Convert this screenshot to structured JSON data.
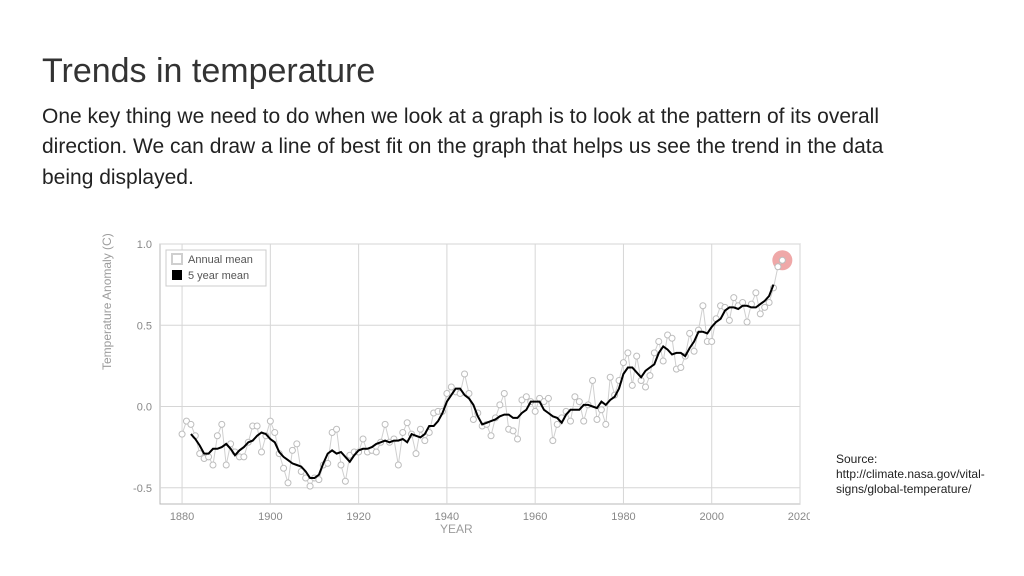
{
  "title": "Trends in temperature",
  "body": "One key thing we need to do when we look at a graph is to look at the pattern of its overall direction. We can draw a line of best fit on the graph that helps us see the trend in the data being displayed.",
  "source_label": "Source:",
  "source_url": "http://climate.nasa.gov/vital-signs/global-temperature/",
  "chart": {
    "type": "line",
    "background_color": "#ffffff",
    "plot_border_color": "#b8b8b8",
    "grid_color": "#d6d6d6",
    "grid_width": 1,
    "x_label": "YEAR",
    "y_label": "Temperature Anomaly (C)",
    "axis_label_color": "#9c9c9c",
    "axis_label_fontsize": 12,
    "tick_color": "#888888",
    "tick_fontsize": 11,
    "xlim": [
      1875,
      2020
    ],
    "ylim": [
      -0.6,
      1.0
    ],
    "xticks": [
      1880,
      1900,
      1920,
      1940,
      1960,
      1980,
      2000,
      2020
    ],
    "yticks": [
      -0.5,
      0.0,
      0.5,
      1.0
    ],
    "legend": {
      "position": "top-left",
      "bg": "#ffffff",
      "border": "#cccccc",
      "fontsize": 11,
      "items": [
        {
          "label": "Annual mean",
          "swatch": "#cfcfcf",
          "swatch_type": "square-outline"
        },
        {
          "label": "5 year mean",
          "swatch": "#000000",
          "swatch_type": "square-fill"
        }
      ]
    },
    "highlight_marker": {
      "year": 2016,
      "value": 0.9,
      "radius": 10,
      "fill": "#ea8b8b",
      "opacity": 0.75
    },
    "series_annual": {
      "color_line": "#cfcfcf",
      "marker_fill": "#ffffff",
      "marker_stroke": "#bdbdbd",
      "marker_radius": 3,
      "line_width": 1,
      "data": [
        [
          1880,
          -0.17
        ],
        [
          1881,
          -0.09
        ],
        [
          1882,
          -0.11
        ],
        [
          1883,
          -0.18
        ],
        [
          1884,
          -0.29
        ],
        [
          1885,
          -0.32
        ],
        [
          1886,
          -0.31
        ],
        [
          1887,
          -0.36
        ],
        [
          1888,
          -0.18
        ],
        [
          1889,
          -0.11
        ],
        [
          1890,
          -0.36
        ],
        [
          1891,
          -0.23
        ],
        [
          1892,
          -0.28
        ],
        [
          1893,
          -0.31
        ],
        [
          1894,
          -0.31
        ],
        [
          1895,
          -0.22
        ],
        [
          1896,
          -0.12
        ],
        [
          1897,
          -0.12
        ],
        [
          1898,
          -0.28
        ],
        [
          1899,
          -0.18
        ],
        [
          1900,
          -0.09
        ],
        [
          1901,
          -0.16
        ],
        [
          1902,
          -0.29
        ],
        [
          1903,
          -0.38
        ],
        [
          1904,
          -0.47
        ],
        [
          1905,
          -0.27
        ],
        [
          1906,
          -0.23
        ],
        [
          1907,
          -0.4
        ],
        [
          1908,
          -0.44
        ],
        [
          1909,
          -0.49
        ],
        [
          1910,
          -0.44
        ],
        [
          1911,
          -0.45
        ],
        [
          1912,
          -0.36
        ],
        [
          1913,
          -0.35
        ],
        [
          1914,
          -0.16
        ],
        [
          1915,
          -0.14
        ],
        [
          1916,
          -0.36
        ],
        [
          1917,
          -0.46
        ],
        [
          1918,
          -0.3
        ],
        [
          1919,
          -0.28
        ],
        [
          1920,
          -0.28
        ],
        [
          1921,
          -0.2
        ],
        [
          1922,
          -0.28
        ],
        [
          1923,
          -0.27
        ],
        [
          1924,
          -0.28
        ],
        [
          1925,
          -0.22
        ],
        [
          1926,
          -0.11
        ],
        [
          1927,
          -0.22
        ],
        [
          1928,
          -0.2
        ],
        [
          1929,
          -0.36
        ],
        [
          1930,
          -0.16
        ],
        [
          1931,
          -0.1
        ],
        [
          1932,
          -0.17
        ],
        [
          1933,
          -0.29
        ],
        [
          1934,
          -0.14
        ],
        [
          1935,
          -0.21
        ],
        [
          1936,
          -0.16
        ],
        [
          1937,
          -0.04
        ],
        [
          1938,
          -0.03
        ],
        [
          1939,
          -0.03
        ],
        [
          1940,
          0.08
        ],
        [
          1941,
          0.12
        ],
        [
          1942,
          0.09
        ],
        [
          1943,
          0.08
        ],
        [
          1944,
          0.2
        ],
        [
          1945,
          0.08
        ],
        [
          1946,
          -0.08
        ],
        [
          1947,
          -0.04
        ],
        [
          1948,
          -0.12
        ],
        [
          1949,
          -0.11
        ],
        [
          1950,
          -0.18
        ],
        [
          1951,
          -0.07
        ],
        [
          1952,
          0.01
        ],
        [
          1953,
          0.08
        ],
        [
          1954,
          -0.14
        ],
        [
          1955,
          -0.15
        ],
        [
          1956,
          -0.2
        ],
        [
          1957,
          0.04
        ],
        [
          1958,
          0.06
        ],
        [
          1959,
          0.03
        ],
        [
          1960,
          -0.03
        ],
        [
          1961,
          0.05
        ],
        [
          1962,
          0.03
        ],
        [
          1963,
          0.05
        ],
        [
          1964,
          -0.21
        ],
        [
          1965,
          -0.11
        ],
        [
          1966,
          -0.07
        ],
        [
          1967,
          -0.03
        ],
        [
          1968,
          -0.09
        ],
        [
          1969,
          0.06
        ],
        [
          1970,
          0.03
        ],
        [
          1971,
          -0.09
        ],
        [
          1972,
          0.01
        ],
        [
          1973,
          0.16
        ],
        [
          1974,
          -0.08
        ],
        [
          1975,
          -0.02
        ],
        [
          1976,
          -0.11
        ],
        [
          1977,
          0.18
        ],
        [
          1978,
          0.07
        ],
        [
          1979,
          0.16
        ],
        [
          1980,
          0.27
        ],
        [
          1981,
          0.33
        ],
        [
          1982,
          0.13
        ],
        [
          1983,
          0.31
        ],
        [
          1984,
          0.16
        ],
        [
          1985,
          0.12
        ],
        [
          1986,
          0.19
        ],
        [
          1987,
          0.33
        ],
        [
          1988,
          0.4
        ],
        [
          1989,
          0.28
        ],
        [
          1990,
          0.44
        ],
        [
          1991,
          0.42
        ],
        [
          1992,
          0.23
        ],
        [
          1993,
          0.24
        ],
        [
          1994,
          0.31
        ],
        [
          1995,
          0.45
        ],
        [
          1996,
          0.34
        ],
        [
          1997,
          0.47
        ],
        [
          1998,
          0.62
        ],
        [
          1999,
          0.4
        ],
        [
          2000,
          0.4
        ],
        [
          2001,
          0.54
        ],
        [
          2002,
          0.62
        ],
        [
          2003,
          0.61
        ],
        [
          2004,
          0.53
        ],
        [
          2005,
          0.67
        ],
        [
          2006,
          0.62
        ],
        [
          2007,
          0.64
        ],
        [
          2008,
          0.52
        ],
        [
          2009,
          0.63
        ],
        [
          2010,
          0.7
        ],
        [
          2011,
          0.57
        ],
        [
          2012,
          0.61
        ],
        [
          2013,
          0.64
        ],
        [
          2014,
          0.73
        ],
        [
          2015,
          0.86
        ],
        [
          2016,
          0.9
        ]
      ]
    },
    "series_5yr": {
      "color_line": "#000000",
      "line_width": 2,
      "data": [
        [
          1882,
          -0.17
        ],
        [
          1883,
          -0.2
        ],
        [
          1884,
          -0.24
        ],
        [
          1885,
          -0.29
        ],
        [
          1886,
          -0.29
        ],
        [
          1887,
          -0.26
        ],
        [
          1888,
          -0.26
        ],
        [
          1889,
          -0.25
        ],
        [
          1890,
          -0.23
        ],
        [
          1891,
          -0.26
        ],
        [
          1892,
          -0.3
        ],
        [
          1893,
          -0.27
        ],
        [
          1894,
          -0.25
        ],
        [
          1895,
          -0.22
        ],
        [
          1896,
          -0.21
        ],
        [
          1897,
          -0.18
        ],
        [
          1898,
          -0.16
        ],
        [
          1899,
          -0.17
        ],
        [
          1900,
          -0.2
        ],
        [
          1901,
          -0.22
        ],
        [
          1902,
          -0.28
        ],
        [
          1903,
          -0.31
        ],
        [
          1904,
          -0.33
        ],
        [
          1905,
          -0.35
        ],
        [
          1906,
          -0.36
        ],
        [
          1907,
          -0.37
        ],
        [
          1908,
          -0.4
        ],
        [
          1909,
          -0.44
        ],
        [
          1910,
          -0.44
        ],
        [
          1911,
          -0.42
        ],
        [
          1912,
          -0.35
        ],
        [
          1913,
          -0.29
        ],
        [
          1914,
          -0.27
        ],
        [
          1915,
          -0.29
        ],
        [
          1916,
          -0.28
        ],
        [
          1917,
          -0.31
        ],
        [
          1918,
          -0.34
        ],
        [
          1919,
          -0.3
        ],
        [
          1920,
          -0.27
        ],
        [
          1921,
          -0.26
        ],
        [
          1922,
          -0.26
        ],
        [
          1923,
          -0.25
        ],
        [
          1924,
          -0.23
        ],
        [
          1925,
          -0.22
        ],
        [
          1926,
          -0.21
        ],
        [
          1927,
          -0.22
        ],
        [
          1928,
          -0.21
        ],
        [
          1929,
          -0.21
        ],
        [
          1930,
          -0.2
        ],
        [
          1931,
          -0.22
        ],
        [
          1932,
          -0.17
        ],
        [
          1933,
          -0.18
        ],
        [
          1934,
          -0.19
        ],
        [
          1935,
          -0.17
        ],
        [
          1936,
          -0.12
        ],
        [
          1937,
          -0.12
        ],
        [
          1938,
          -0.09
        ],
        [
          1939,
          -0.04
        ],
        [
          1940,
          0.03
        ],
        [
          1941,
          0.07
        ],
        [
          1942,
          0.11
        ],
        [
          1943,
          0.11
        ],
        [
          1944,
          0.07
        ],
        [
          1945,
          0.05
        ],
        [
          1946,
          0.01
        ],
        [
          1947,
          -0.06
        ],
        [
          1948,
          -0.11
        ],
        [
          1949,
          -0.1
        ],
        [
          1950,
          -0.09
        ],
        [
          1951,
          -0.08
        ],
        [
          1952,
          -0.06
        ],
        [
          1953,
          -0.05
        ],
        [
          1954,
          -0.05
        ],
        [
          1955,
          -0.07
        ],
        [
          1956,
          -0.07
        ],
        [
          1957,
          -0.04
        ],
        [
          1958,
          -0.02
        ],
        [
          1959,
          0.03
        ],
        [
          1960,
          0.03
        ],
        [
          1961,
          0.03
        ],
        [
          1962,
          -0.02
        ],
        [
          1963,
          -0.04
        ],
        [
          1964,
          -0.06
        ],
        [
          1965,
          -0.07
        ],
        [
          1966,
          -0.1
        ],
        [
          1967,
          -0.05
        ],
        [
          1968,
          -0.02
        ],
        [
          1969,
          -0.02
        ],
        [
          1970,
          -0.02
        ],
        [
          1971,
          0.01
        ],
        [
          1972,
          0.01
        ],
        [
          1973,
          -0.0
        ],
        [
          1974,
          -0.01
        ],
        [
          1975,
          0.03
        ],
        [
          1976,
          0.01
        ],
        [
          1977,
          0.04
        ],
        [
          1978,
          0.06
        ],
        [
          1979,
          0.11
        ],
        [
          1980,
          0.2
        ],
        [
          1981,
          0.24
        ],
        [
          1982,
          0.24
        ],
        [
          1983,
          0.21
        ],
        [
          1984,
          0.18
        ],
        [
          1985,
          0.22
        ],
        [
          1986,
          0.24
        ],
        [
          1987,
          0.26
        ],
        [
          1988,
          0.33
        ],
        [
          1989,
          0.37
        ],
        [
          1990,
          0.35
        ],
        [
          1991,
          0.32
        ],
        [
          1992,
          0.33
        ],
        [
          1993,
          0.33
        ],
        [
          1994,
          0.31
        ],
        [
          1995,
          0.36
        ],
        [
          1996,
          0.4
        ],
        [
          1997,
          0.46
        ],
        [
          1998,
          0.46
        ],
        [
          1999,
          0.45
        ],
        [
          2000,
          0.49
        ],
        [
          2001,
          0.52
        ],
        [
          2002,
          0.54
        ],
        [
          2003,
          0.59
        ],
        [
          2004,
          0.61
        ],
        [
          2005,
          0.61
        ],
        [
          2006,
          0.6
        ],
        [
          2007,
          0.62
        ],
        [
          2008,
          0.62
        ],
        [
          2009,
          0.61
        ],
        [
          2010,
          0.61
        ],
        [
          2011,
          0.63
        ],
        [
          2012,
          0.65
        ],
        [
          2013,
          0.68
        ],
        [
          2014,
          0.75
        ]
      ]
    }
  }
}
